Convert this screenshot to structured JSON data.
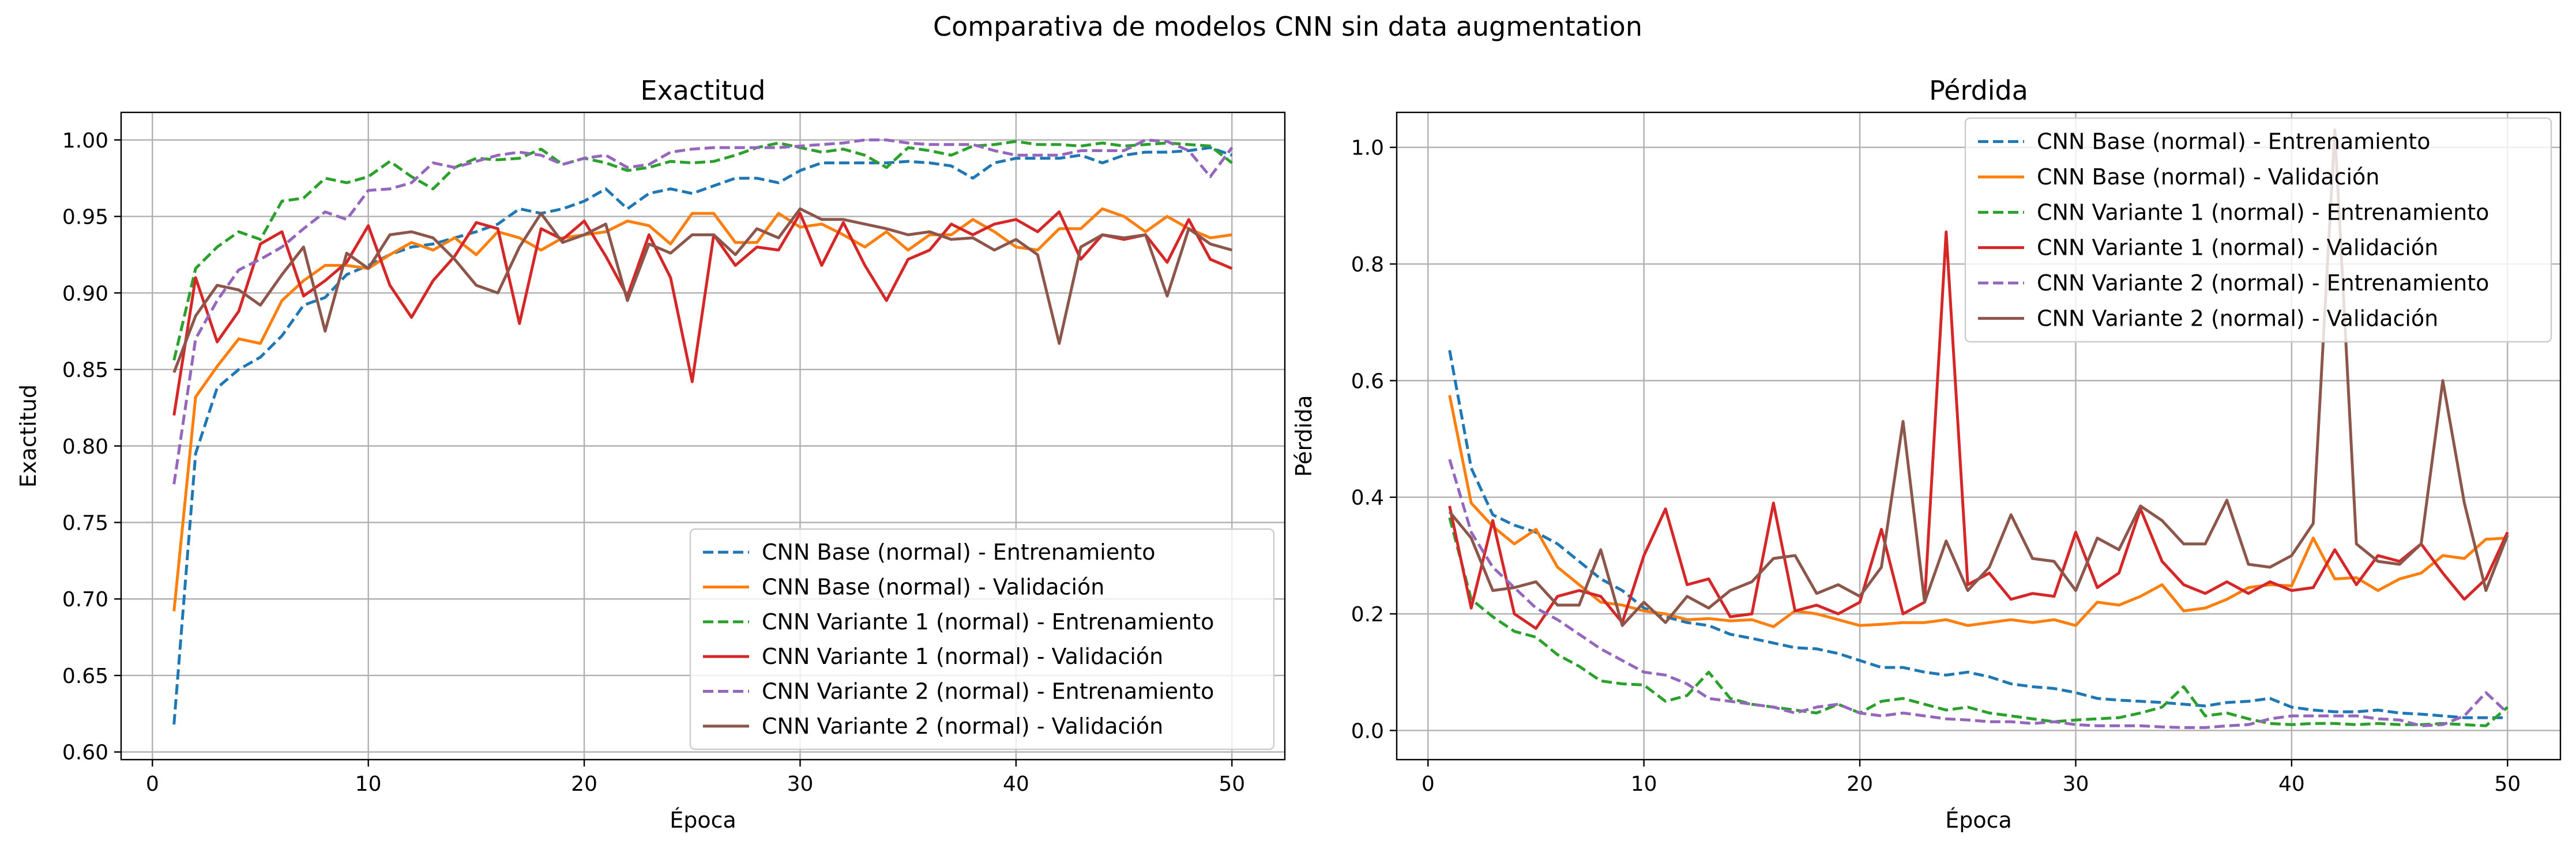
{
  "figure": {
    "suptitle": "Comparativa de modelos CNN sin data augmentation"
  },
  "chart_data": [
    {
      "type": "line",
      "title": "Exactitud",
      "xlabel": "Época",
      "ylabel": "Exactitud",
      "xlim": [
        -1.45,
        52.45
      ],
      "ylim": [
        0.595,
        1.018
      ],
      "xticks": [
        0,
        10,
        20,
        30,
        40,
        50
      ],
      "yticks": [
        0.6,
        0.65,
        0.7,
        0.75,
        0.8,
        0.85,
        0.9,
        0.95,
        1.0
      ],
      "grid": true,
      "legend_position": "lower-right",
      "x": [
        1,
        2,
        3,
        4,
        5,
        6,
        7,
        8,
        9,
        10,
        11,
        12,
        13,
        14,
        15,
        16,
        17,
        18,
        19,
        20,
        21,
        22,
        23,
        24,
        25,
        26,
        27,
        28,
        29,
        30,
        31,
        32,
        33,
        34,
        35,
        36,
        37,
        38,
        39,
        40,
        41,
        42,
        43,
        44,
        45,
        46,
        47,
        48,
        49,
        50
      ],
      "series": [
        {
          "name": "CNN Base (normal) - Entrenamiento",
          "color": "#1f77b4",
          "dash": "dashed",
          "values": [
            0.618,
            0.795,
            0.838,
            0.85,
            0.858,
            0.872,
            0.892,
            0.897,
            0.912,
            0.918,
            0.925,
            0.93,
            0.932,
            0.936,
            0.94,
            0.945,
            0.955,
            0.952,
            0.955,
            0.96,
            0.968,
            0.955,
            0.965,
            0.968,
            0.965,
            0.97,
            0.975,
            0.975,
            0.972,
            0.98,
            0.985,
            0.985,
            0.985,
            0.985,
            0.986,
            0.985,
            0.983,
            0.975,
            0.985,
            0.988,
            0.988,
            0.988,
            0.99,
            0.985,
            0.99,
            0.992,
            0.992,
            0.993,
            0.995,
            0.99
          ]
        },
        {
          "name": "CNN Base (normal) - Validación",
          "color": "#ff7f0e",
          "dash": "solid",
          "values": [
            0.692,
            0.832,
            0.852,
            0.87,
            0.867,
            0.895,
            0.908,
            0.918,
            0.918,
            0.916,
            0.925,
            0.933,
            0.928,
            0.936,
            0.925,
            0.94,
            0.936,
            0.928,
            0.936,
            0.938,
            0.94,
            0.947,
            0.944,
            0.932,
            0.952,
            0.952,
            0.933,
            0.933,
            0.952,
            0.943,
            0.945,
            0.938,
            0.93,
            0.94,
            0.928,
            0.938,
            0.938,
            0.948,
            0.94,
            0.93,
            0.928,
            0.942,
            0.942,
            0.955,
            0.95,
            0.94,
            0.95,
            0.942,
            0.936,
            0.938
          ]
        },
        {
          "name": "CNN Variante 1 (normal) - Entrenamiento",
          "color": "#2ca02c",
          "dash": "dashed",
          "values": [
            0.856,
            0.916,
            0.93,
            0.94,
            0.935,
            0.96,
            0.962,
            0.975,
            0.972,
            0.976,
            0.986,
            0.976,
            0.968,
            0.982,
            0.988,
            0.987,
            0.988,
            0.994,
            0.984,
            0.988,
            0.985,
            0.98,
            0.982,
            0.986,
            0.985,
            0.986,
            0.99,
            0.995,
            0.998,
            0.995,
            0.992,
            0.994,
            0.99,
            0.982,
            0.995,
            0.993,
            0.99,
            0.996,
            0.997,
            0.999,
            0.997,
            0.997,
            0.996,
            0.998,
            0.996,
            0.997,
            0.998,
            0.997,
            0.996,
            0.985
          ]
        },
        {
          "name": "CNN Variante 1 (normal) - Validación",
          "color": "#d62728",
          "dash": "solid",
          "values": [
            0.82,
            0.91,
            0.868,
            0.888,
            0.932,
            0.94,
            0.898,
            0.908,
            0.92,
            0.944,
            0.905,
            0.884,
            0.908,
            0.924,
            0.946,
            0.942,
            0.88,
            0.942,
            0.935,
            0.947,
            0.924,
            0.898,
            0.938,
            0.91,
            0.842,
            0.938,
            0.918,
            0.93,
            0.928,
            0.952,
            0.918,
            0.946,
            0.918,
            0.895,
            0.922,
            0.928,
            0.945,
            0.938,
            0.945,
            0.948,
            0.94,
            0.953,
            0.922,
            0.938,
            0.935,
            0.938,
            0.92,
            0.948,
            0.922,
            0.916
          ]
        },
        {
          "name": "CNN Variante 2 (normal) - Entrenamiento",
          "color": "#9467bd",
          "dash": "dashed",
          "values": [
            0.775,
            0.87,
            0.895,
            0.915,
            0.922,
            0.93,
            0.942,
            0.953,
            0.948,
            0.967,
            0.968,
            0.972,
            0.985,
            0.982,
            0.986,
            0.99,
            0.992,
            0.99,
            0.984,
            0.988,
            0.99,
            0.982,
            0.984,
            0.992,
            0.994,
            0.995,
            0.995,
            0.995,
            0.995,
            0.996,
            0.997,
            0.998,
            1.0,
            1.0,
            0.998,
            0.997,
            0.997,
            0.997,
            0.993,
            0.99,
            0.99,
            0.99,
            0.993,
            0.993,
            0.993,
            1.0,
            0.999,
            0.993,
            0.976,
            0.995
          ]
        },
        {
          "name": "CNN Variante 2 (normal) - Validación",
          "color": "#8c564b",
          "dash": "solid",
          "values": [
            0.848,
            0.885,
            0.905,
            0.902,
            0.892,
            0.912,
            0.93,
            0.875,
            0.926,
            0.916,
            0.938,
            0.94,
            0.936,
            0.922,
            0.905,
            0.9,
            0.93,
            0.952,
            0.933,
            0.938,
            0.945,
            0.895,
            0.932,
            0.926,
            0.938,
            0.938,
            0.925,
            0.942,
            0.936,
            0.955,
            0.948,
            0.948,
            0.945,
            0.942,
            0.938,
            0.94,
            0.935,
            0.936,
            0.928,
            0.935,
            0.925,
            0.867,
            0.93,
            0.938,
            0.936,
            0.938,
            0.898,
            0.942,
            0.932,
            0.928
          ]
        }
      ]
    },
    {
      "type": "line",
      "title": "Pérdida",
      "xlabel": "Época",
      "ylabel": "Pérdida",
      "xlim": [
        -1.45,
        52.45
      ],
      "ylim": [
        -0.05,
        1.06
      ],
      "xticks": [
        0,
        10,
        20,
        30,
        40,
        50
      ],
      "yticks": [
        0.0,
        0.2,
        0.4,
        0.6,
        0.8,
        1.0
      ],
      "grid": true,
      "legend_position": "upper-right",
      "x": [
        1,
        2,
        3,
        4,
        5,
        6,
        7,
        8,
        9,
        10,
        11,
        12,
        13,
        14,
        15,
        16,
        17,
        18,
        19,
        20,
        21,
        22,
        23,
        24,
        25,
        26,
        27,
        28,
        29,
        30,
        31,
        32,
        33,
        34,
        35,
        36,
        37,
        38,
        39,
        40,
        41,
        42,
        43,
        44,
        45,
        46,
        47,
        48,
        49,
        50
      ],
      "series": [
        {
          "name": "CNN Base (normal) - Entrenamiento",
          "color": "#1f77b4",
          "dash": "dashed",
          "values": [
            0.652,
            0.45,
            0.37,
            0.352,
            0.34,
            0.32,
            0.29,
            0.26,
            0.24,
            0.21,
            0.195,
            0.185,
            0.18,
            0.165,
            0.158,
            0.15,
            0.142,
            0.14,
            0.132,
            0.12,
            0.108,
            0.108,
            0.1,
            0.095,
            0.1,
            0.092,
            0.08,
            0.075,
            0.072,
            0.065,
            0.055,
            0.052,
            0.05,
            0.048,
            0.045,
            0.042,
            0.048,
            0.05,
            0.055,
            0.04,
            0.035,
            0.032,
            0.032,
            0.035,
            0.03,
            0.028,
            0.025,
            0.022,
            0.022,
            0.022
          ]
        },
        {
          "name": "CNN Base (normal) - Validación",
          "color": "#ff7f0e",
          "dash": "solid",
          "values": [
            0.575,
            0.39,
            0.35,
            0.32,
            0.345,
            0.28,
            0.25,
            0.22,
            0.215,
            0.205,
            0.2,
            0.19,
            0.192,
            0.188,
            0.19,
            0.178,
            0.205,
            0.2,
            0.19,
            0.18,
            0.182,
            0.185,
            0.185,
            0.19,
            0.18,
            0.185,
            0.19,
            0.185,
            0.19,
            0.18,
            0.22,
            0.215,
            0.23,
            0.25,
            0.205,
            0.21,
            0.225,
            0.245,
            0.25,
            0.248,
            0.33,
            0.26,
            0.262,
            0.24,
            0.26,
            0.27,
            0.3,
            0.295,
            0.328,
            0.33
          ]
        },
        {
          "name": "CNN Variante 1 (normal) - Entrenamiento",
          "color": "#2ca02c",
          "dash": "dashed",
          "values": [
            0.365,
            0.225,
            0.195,
            0.17,
            0.16,
            0.13,
            0.11,
            0.085,
            0.08,
            0.078,
            0.05,
            0.06,
            0.1,
            0.055,
            0.045,
            0.04,
            0.035,
            0.03,
            0.045,
            0.03,
            0.05,
            0.055,
            0.045,
            0.035,
            0.04,
            0.03,
            0.025,
            0.02,
            0.015,
            0.018,
            0.02,
            0.022,
            0.03,
            0.04,
            0.075,
            0.025,
            0.03,
            0.02,
            0.012,
            0.01,
            0.012,
            0.012,
            0.01,
            0.012,
            0.01,
            0.01,
            0.012,
            0.01,
            0.008,
            0.04
          ]
        },
        {
          "name": "CNN Variante 1 (normal) - Validación",
          "color": "#d62728",
          "dash": "solid",
          "values": [
            0.385,
            0.21,
            0.36,
            0.2,
            0.175,
            0.23,
            0.24,
            0.23,
            0.185,
            0.3,
            0.38,
            0.25,
            0.26,
            0.195,
            0.2,
            0.39,
            0.205,
            0.215,
            0.2,
            0.22,
            0.345,
            0.2,
            0.22,
            0.855,
            0.25,
            0.27,
            0.225,
            0.235,
            0.23,
            0.34,
            0.245,
            0.27,
            0.38,
            0.29,
            0.25,
            0.235,
            0.255,
            0.235,
            0.255,
            0.24,
            0.245,
            0.31,
            0.25,
            0.3,
            0.29,
            0.32,
            0.27,
            0.225,
            0.26,
            0.34
          ]
        },
        {
          "name": "CNN Variante 2 (normal) - Entrenamiento",
          "color": "#9467bd",
          "dash": "dashed",
          "values": [
            0.465,
            0.34,
            0.28,
            0.245,
            0.21,
            0.19,
            0.165,
            0.14,
            0.12,
            0.1,
            0.095,
            0.08,
            0.055,
            0.05,
            0.045,
            0.04,
            0.03,
            0.04,
            0.045,
            0.03,
            0.025,
            0.03,
            0.025,
            0.02,
            0.018,
            0.015,
            0.015,
            0.012,
            0.015,
            0.01,
            0.008,
            0.008,
            0.008,
            0.006,
            0.005,
            0.005,
            0.008,
            0.01,
            0.02,
            0.025,
            0.025,
            0.025,
            0.025,
            0.02,
            0.018,
            0.008,
            0.01,
            0.025,
            0.065,
            0.03
          ]
        },
        {
          "name": "CNN Variante 2 (normal) - Validación",
          "color": "#8c564b",
          "dash": "solid",
          "values": [
            0.375,
            0.33,
            0.24,
            0.245,
            0.255,
            0.215,
            0.215,
            0.31,
            0.18,
            0.22,
            0.185,
            0.23,
            0.21,
            0.24,
            0.255,
            0.295,
            0.3,
            0.235,
            0.25,
            0.23,
            0.28,
            0.53,
            0.22,
            0.325,
            0.24,
            0.28,
            0.37,
            0.295,
            0.29,
            0.24,
            0.33,
            0.31,
            0.385,
            0.36,
            0.32,
            0.32,
            0.395,
            0.285,
            0.28,
            0.3,
            0.355,
            1.03,
            0.32,
            0.29,
            0.285,
            0.32,
            0.6,
            0.39,
            0.24,
            0.335
          ]
        }
      ]
    }
  ]
}
